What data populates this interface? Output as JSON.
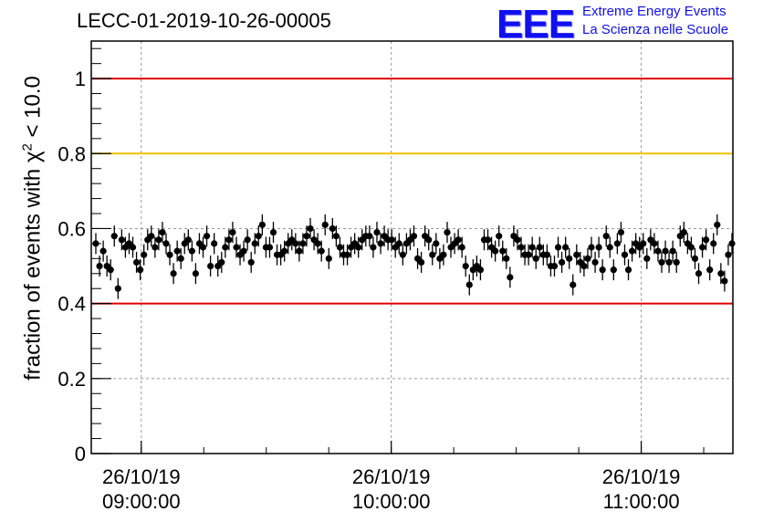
{
  "title": "LECC-01-2019-10-26-00005",
  "logo": {
    "mark": "EEE",
    "line1": "Extreme Energy Events",
    "line2": "La Scienza nelle Scuole",
    "color": "#1010ee"
  },
  "chart_data": {
    "type": "scatter",
    "title": "LECC-01-2019-10-26-00005",
    "ylabel": {
      "prefix": "fraction of events with ",
      "symbol": "χ",
      "sup": "2",
      "suffix": " < 10.0"
    },
    "xlabel": "",
    "x_axis": {
      "kind": "time",
      "range": [
        "26/10/19 08:48:00",
        "26/10/19 11:22:00"
      ],
      "major_ticks": [
        {
          "date": "26/10/19",
          "time": "09:00:00"
        },
        {
          "date": "26/10/19",
          "time": "10:00:00"
        },
        {
          "date": "26/10/19",
          "time": "11:00:00"
        }
      ]
    },
    "ylim": [
      0,
      1.1
    ],
    "yticks": [
      0,
      0.2,
      0.4,
      0.6,
      0.8,
      1
    ],
    "ytick_labels": [
      "0",
      "0.2",
      "0.4",
      "0.6",
      "0.8",
      "1"
    ],
    "grid": true,
    "reference_lines": [
      {
        "y": 1.0,
        "color": "#e00000"
      },
      {
        "y": 0.8,
        "color": "#f2c200"
      },
      {
        "y": 0.4,
        "color": "#e00000"
      }
    ],
    "marker_color": "#000000",
    "error_bar": 0.028,
    "series": [
      {
        "values": [
          0.56,
          0.5,
          0.54,
          0.5,
          0.49,
          0.58,
          0.44,
          0.57,
          0.55,
          0.56,
          0.55,
          0.51,
          0.49,
          0.53,
          0.57,
          0.58,
          0.55,
          0.57,
          0.59,
          0.56,
          0.53,
          0.48,
          0.54,
          0.52,
          0.56,
          0.57,
          0.54,
          0.48,
          0.56,
          0.55,
          0.58,
          0.5,
          0.56,
          0.5,
          0.51,
          0.55,
          0.57,
          0.59,
          0.55,
          0.53,
          0.54,
          0.57,
          0.51,
          0.56,
          0.58,
          0.61,
          0.55,
          0.55,
          0.59,
          0.53,
          0.53,
          0.54,
          0.56,
          0.57,
          0.56,
          0.54,
          0.56,
          0.58,
          0.6,
          0.57,
          0.56,
          0.54,
          0.61,
          0.52,
          0.6,
          0.58,
          0.55,
          0.53,
          0.53,
          0.55,
          0.56,
          0.55,
          0.57,
          0.58,
          0.58,
          0.55,
          0.59,
          0.56,
          0.58,
          0.57,
          0.57,
          0.55,
          0.56,
          0.53,
          0.56,
          0.57,
          0.58,
          0.52,
          0.51,
          0.58,
          0.57,
          0.53,
          0.56,
          0.52,
          0.53,
          0.59,
          0.55,
          0.56,
          0.57,
          0.55,
          0.5,
          0.45,
          0.49,
          0.5,
          0.49,
          0.57,
          0.57,
          0.55,
          0.54,
          0.58,
          0.54,
          0.52,
          0.47,
          0.58,
          0.57,
          0.55,
          0.53,
          0.53,
          0.55,
          0.52,
          0.55,
          0.53,
          0.53,
          0.5,
          0.5,
          0.55,
          0.51,
          0.55,
          0.52,
          0.45,
          0.53,
          0.51,
          0.5,
          0.52,
          0.55,
          0.51,
          0.55,
          0.49,
          0.58,
          0.55,
          0.49,
          0.56,
          0.59,
          0.53,
          0.49,
          0.54,
          0.56,
          0.55,
          0.56,
          0.52,
          0.57,
          0.56,
          0.54,
          0.51,
          0.54,
          0.51,
          0.54,
          0.51,
          0.58,
          0.59,
          0.56,
          0.55,
          0.52,
          0.48,
          0.55,
          0.57,
          0.49,
          0.56,
          0.61,
          0.48,
          0.46,
          0.53,
          0.56
        ]
      }
    ]
  }
}
